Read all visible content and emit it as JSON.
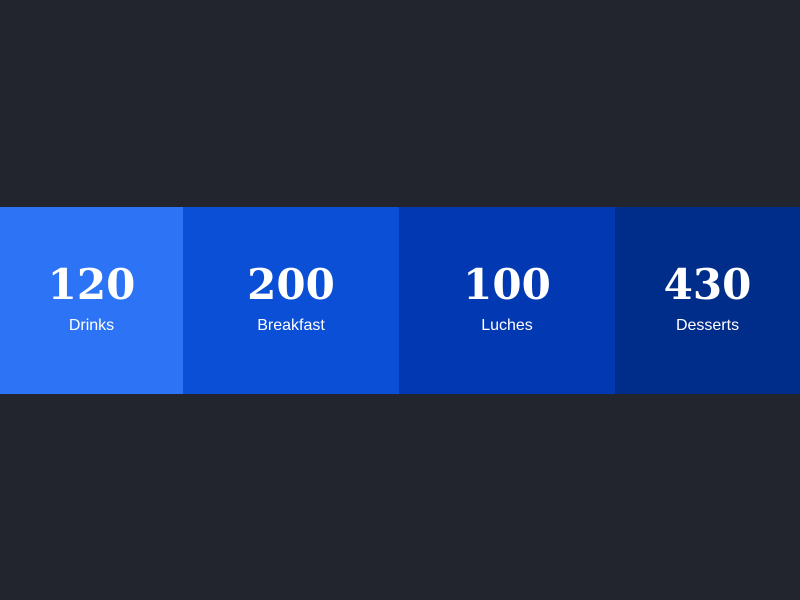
{
  "colors": {
    "background": "#22252d",
    "card_1": "#2c74f5",
    "card_2": "#0a4fd6",
    "card_3": "#0238b1",
    "card_4": "#002c8a"
  },
  "stats": [
    {
      "value": "120",
      "label": "Drinks"
    },
    {
      "value": "200",
      "label": "Breakfast"
    },
    {
      "value": "100",
      "label": "Luches"
    },
    {
      "value": "430",
      "label": "Desserts"
    }
  ]
}
